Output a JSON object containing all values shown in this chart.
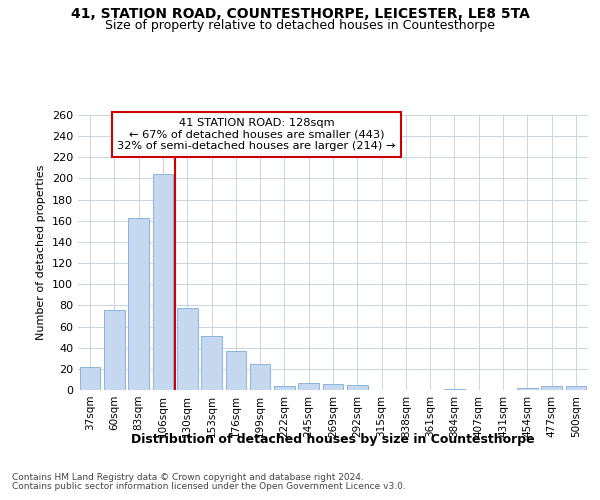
{
  "title": "41, STATION ROAD, COUNTESTHORPE, LEICESTER, LE8 5TA",
  "subtitle": "Size of property relative to detached houses in Countesthorpe",
  "xlabel": "Distribution of detached houses by size in Countesthorpe",
  "ylabel": "Number of detached properties",
  "categories": [
    "37sqm",
    "60sqm",
    "83sqm",
    "106sqm",
    "130sqm",
    "153sqm",
    "176sqm",
    "199sqm",
    "222sqm",
    "245sqm",
    "269sqm",
    "292sqm",
    "315sqm",
    "338sqm",
    "361sqm",
    "384sqm",
    "407sqm",
    "431sqm",
    "454sqm",
    "477sqm",
    "500sqm"
  ],
  "values": [
    22,
    76,
    163,
    204,
    78,
    51,
    37,
    25,
    4,
    7,
    6,
    5,
    0,
    0,
    0,
    1,
    0,
    0,
    2,
    4,
    4
  ],
  "bar_color": "#c5d8f0",
  "bar_edge_color": "#7aaed6",
  "grid_color": "#c8d4e0",
  "vline_color": "#cc0000",
  "annotation_title": "41 STATION ROAD: 128sqm",
  "annotation_line1": "← 67% of detached houses are smaller (443)",
  "annotation_line2": "32% of semi-detached houses are larger (214) →",
  "annotation_box_color": "#ffffff",
  "annotation_box_edge_color": "#cc0000",
  "footer1": "Contains HM Land Registry data © Crown copyright and database right 2024.",
  "footer2": "Contains public sector information licensed under the Open Government Licence v3.0.",
  "ylim": [
    0,
    260
  ],
  "yticks": [
    0,
    20,
    40,
    60,
    80,
    100,
    120,
    140,
    160,
    180,
    200,
    220,
    240,
    260
  ],
  "background_color": "#ffffff",
  "plot_background_color": "#ffffff"
}
